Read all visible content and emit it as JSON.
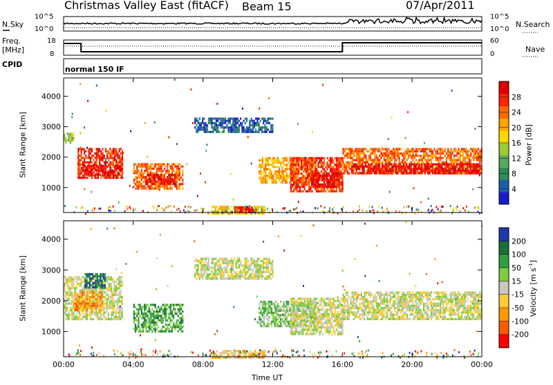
{
  "header": {
    "title": "Christmas Valley East (fitACF)",
    "beam": "Beam 15",
    "date": "07/Apr/2011"
  },
  "noise_panel": {
    "left_label": "N.Sky",
    "left_ticks": [
      "10^5",
      "10^0"
    ],
    "right_ticks": [
      "10^5",
      "10^0"
    ],
    "right_label": "N.Search"
  },
  "freq_panel": {
    "left_label_1": "Freq.",
    "left_label_2": "[MHz]",
    "left_ticks": [
      "18",
      "8"
    ],
    "right_ticks": [
      "60",
      "0"
    ],
    "right_label": "Nave"
  },
  "cpid_panel": {
    "label": "CPID",
    "mode": "normal 150 IF"
  },
  "colors": {
    "power_scale": [
      "#1a1acc",
      "#1f5fa8",
      "#2e8b57",
      "#5aa860",
      "#9acd32",
      "#ffd700",
      "#ffa500",
      "#ff6a00",
      "#ff2400",
      "#e00000"
    ],
    "velocity_scale": [
      "#ff0000",
      "#ff5a00",
      "#ff9900",
      "#ffcc33",
      "#c8c8c0",
      "#80cc40",
      "#2fa040",
      "#1e6e3a",
      "#1f3aa8"
    ]
  },
  "chart_data": [
    {
      "type": "heatmap",
      "name": "power",
      "ylabel": "Slant Range [km]",
      "yticks": [
        "4000",
        "3000",
        "2000",
        "1000"
      ],
      "ylim": [
        180,
        4600
      ],
      "xlim": [
        0,
        24
      ],
      "colorbar_label": "Power [dB]",
      "colorbar_ticks": [
        "28",
        "24",
        "20",
        "16",
        "12",
        "8",
        "4"
      ],
      "bands": [
        {
          "start": 0.0,
          "end": 0.6,
          "lo": 2500,
          "hi": 2800,
          "level": 4
        },
        {
          "start": 0.8,
          "end": 3.4,
          "lo": 1300,
          "hi": 2300,
          "level": 8
        },
        {
          "start": 1.0,
          "end": 3.2,
          "lo": 1450,
          "hi": 1750,
          "level": 9
        },
        {
          "start": 4.0,
          "end": 6.8,
          "lo": 1000,
          "hi": 1800,
          "level": 7
        },
        {
          "start": 4.6,
          "end": 6.4,
          "lo": 1150,
          "hi": 1450,
          "level": 9
        },
        {
          "start": 8.5,
          "end": 11.5,
          "lo": 180,
          "hi": 400,
          "level": 5
        },
        {
          "start": 9.8,
          "end": 10.9,
          "lo": 200,
          "hi": 380,
          "level": 9
        },
        {
          "start": 11.2,
          "end": 14.5,
          "lo": 1200,
          "hi": 2000,
          "level": 6
        },
        {
          "start": 13.0,
          "end": 16.0,
          "lo": 900,
          "hi": 2000,
          "level": 8
        },
        {
          "start": 14.2,
          "end": 15.8,
          "lo": 1000,
          "hi": 1500,
          "level": 9
        },
        {
          "start": 16.0,
          "end": 24.0,
          "lo": 1450,
          "hi": 2300,
          "level": 7
        },
        {
          "start": 16.5,
          "end": 24.0,
          "lo": 1500,
          "hi": 1800,
          "level": 9
        },
        {
          "start": 7.5,
          "end": 12.0,
          "lo": 2800,
          "hi": 3300,
          "level": 1
        }
      ]
    },
    {
      "type": "heatmap",
      "name": "velocity",
      "ylabel": "Slant Range [km]",
      "yticks": [
        "4000",
        "3000",
        "2000",
        "1000"
      ],
      "ylim": [
        180,
        4600
      ],
      "xlim": [
        0,
        24
      ],
      "xticks": [
        "00:00",
        "04:00",
        "08:00",
        "12:00",
        "16:00",
        "20:00",
        "00:00"
      ],
      "xlabel": "Time UT",
      "colorbar_label": "Velocity [m s",
      "colorbar_label_sup": "-1",
      "colorbar_label_end": "]",
      "colorbar_ticks": [
        "200",
        "100",
        "50",
        "15",
        "-15",
        "-50",
        "-100",
        "-200"
      ],
      "bands": [
        {
          "start": 0.0,
          "end": 3.4,
          "lo": 1400,
          "hi": 2800,
          "level": 4
        },
        {
          "start": 0.6,
          "end": 2.2,
          "lo": 1700,
          "hi": 2300,
          "level": 2
        },
        {
          "start": 1.2,
          "end": 2.4,
          "lo": 2400,
          "hi": 2900,
          "level": 7
        },
        {
          "start": 4.0,
          "end": 6.8,
          "lo": 1000,
          "hi": 1900,
          "level": 6
        },
        {
          "start": 8.5,
          "end": 11.5,
          "lo": 180,
          "hi": 400,
          "level": 3
        },
        {
          "start": 11.2,
          "end": 14.5,
          "lo": 1200,
          "hi": 2000,
          "level": 5
        },
        {
          "start": 13.0,
          "end": 16.0,
          "lo": 900,
          "hi": 2100,
          "level": 4
        },
        {
          "start": 16.0,
          "end": 24.0,
          "lo": 1400,
          "hi": 2300,
          "level": 4
        },
        {
          "start": 7.5,
          "end": 12.0,
          "lo": 2700,
          "hi": 3400,
          "level": 4
        }
      ]
    }
  ]
}
